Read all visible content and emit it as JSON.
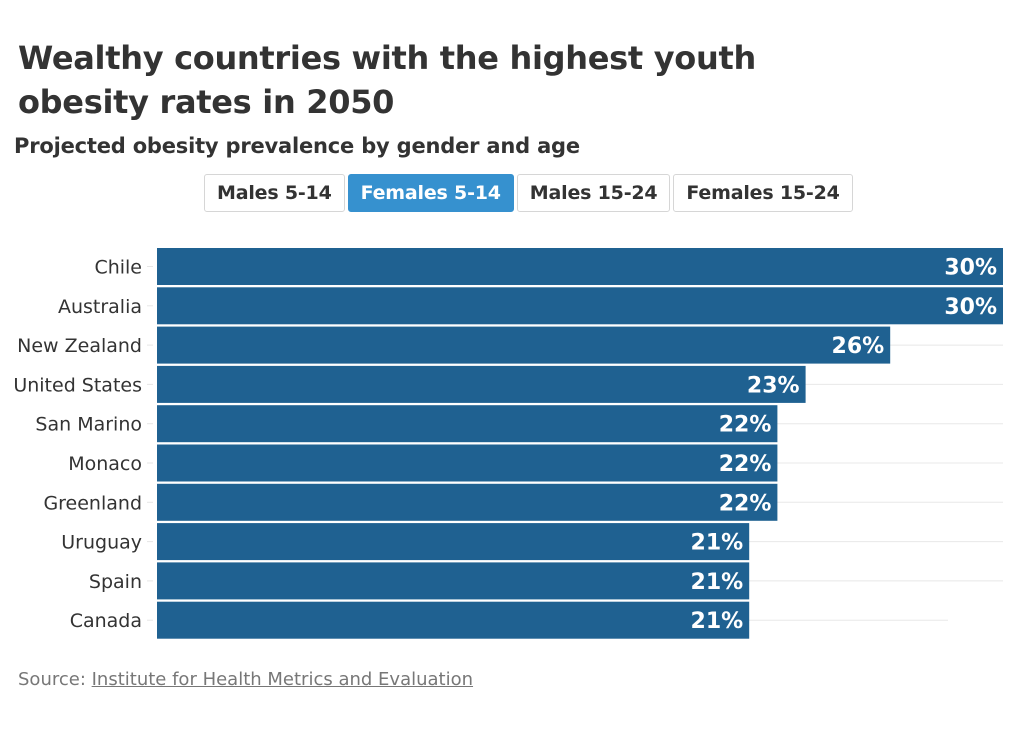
{
  "header": {
    "title": "Wealthy countries with the highest youth obesity rates in 2050",
    "subtitle": "Projected obesity prevalence by gender and age"
  },
  "tabs": [
    {
      "label": "Males 5-14",
      "active": false
    },
    {
      "label": "Females 5-14",
      "active": true
    },
    {
      "label": "Males 15-24",
      "active": false
    },
    {
      "label": "Females 15-24",
      "active": false
    }
  ],
  "colors": {
    "bar": "#1f6191",
    "tab_active": "#3691cf",
    "gridline": "#e8e8e8"
  },
  "chart_data": {
    "type": "bar",
    "orientation": "horizontal",
    "title": "Wealthy countries with the highest youth obesity rates in 2050",
    "subtitle": "Projected obesity prevalence by gender and age",
    "series_name": "Females 5-14",
    "categories": [
      "Chile",
      "Australia",
      "New Zealand",
      "United States",
      "San Marino",
      "Monaco",
      "Greenland",
      "Uruguay",
      "Spain",
      "Canada"
    ],
    "values": [
      30,
      30,
      26,
      23,
      22,
      22,
      22,
      21,
      21,
      21
    ],
    "value_labels": [
      "30%",
      "30%",
      "26%",
      "23%",
      "22%",
      "22%",
      "22%",
      "21%",
      "21%",
      "21%"
    ],
    "unit": "%",
    "xlabel": "",
    "ylabel": "",
    "xlim": [
      0,
      30
    ],
    "grid": true,
    "legend": "none"
  },
  "footer": {
    "source_label": "Source:",
    "source_link": "Institute for Health Metrics and Evaluation"
  }
}
